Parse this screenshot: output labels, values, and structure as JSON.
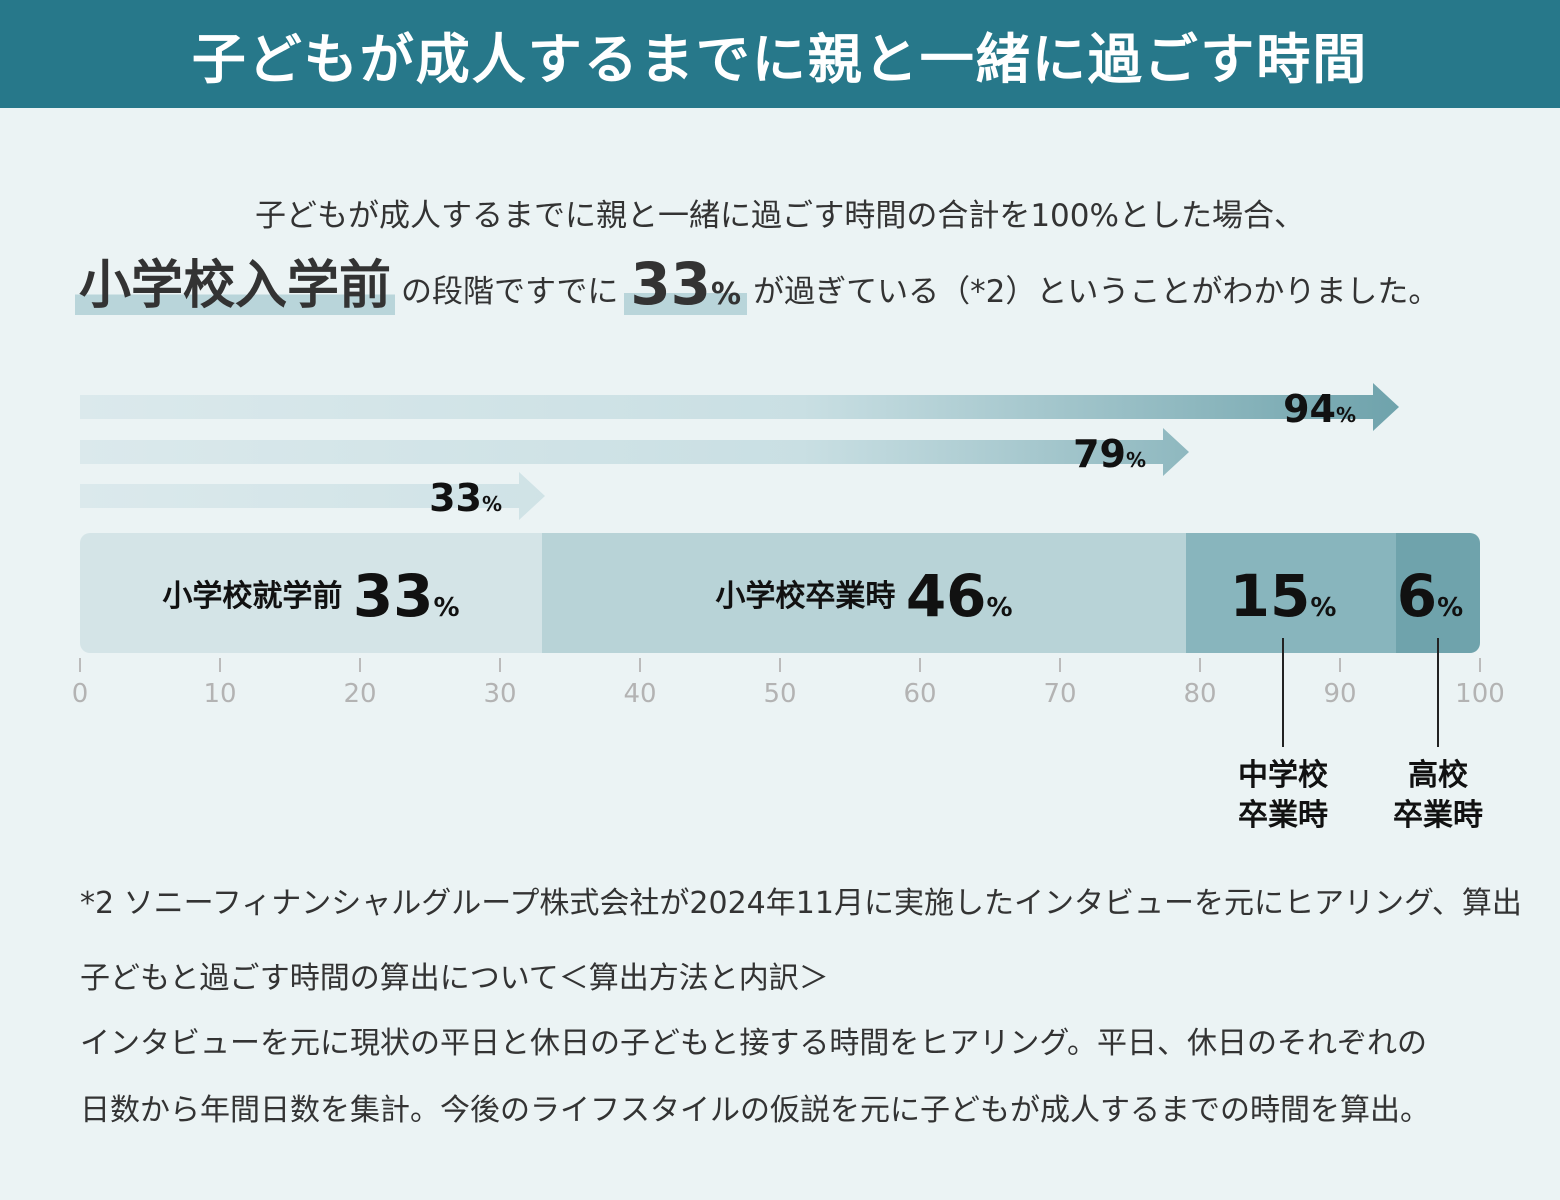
{
  "header": {
    "title": "子どもが成人するまでに親と一緒に過ごす時間"
  },
  "lead": {
    "line1": "子どもが成人するまでに親と一緒に過ごす時間の合計を100%とした場合、",
    "highlight_stage": "小学校入学前",
    "middle": "の段階ですでに",
    "highlight_value": "33",
    "highlight_unit": "%",
    "end": "が過ぎている（*2）ということがわかりました。"
  },
  "colors": {
    "header_bg": "#27788a",
    "background": "#ebf3f4",
    "seg1": "#d4e4e7",
    "seg2": "#b8d3d7",
    "seg3": "#88b5bd",
    "seg4": "#6fa3ac",
    "arrow_light": "#dbe9ec",
    "arrow_mid": "#c9dfe3",
    "arrow_dark": "#6fa3ac"
  },
  "chart_data": {
    "type": "bar",
    "title": "子どもが成人するまでに親と一緒に過ごす時間",
    "orientation": "horizontal-stacked",
    "unit": "%",
    "xlim": [
      0,
      100
    ],
    "ticks": [
      0,
      10,
      20,
      30,
      40,
      50,
      60,
      70,
      80,
      90,
      100
    ],
    "segments": [
      {
        "name": "小学校就学前",
        "value": 33,
        "label": "小学校就学前"
      },
      {
        "name": "小学校卒業時",
        "value": 46,
        "label": "小学校卒業時"
      },
      {
        "name": "中学校卒業時",
        "value": 15,
        "label": "",
        "callout": [
          "中学校",
          "卒業時"
        ]
      },
      {
        "name": "高校卒業時",
        "value": 6,
        "label": "",
        "callout": [
          "高校",
          "卒業時"
        ]
      }
    ],
    "cumulative": [
      {
        "value": 33,
        "label": "33"
      },
      {
        "value": 79,
        "label": "79"
      },
      {
        "value": 94,
        "label": "94"
      }
    ]
  },
  "footnotes": [
    "*2 ソニーフィナンシャルグループ株式会社が2024年11月に実施したインタビューを元にヒアリング、算出",
    "子どもと過ごす時間の算出について＜算出方法と内訳＞",
    "インタビューを元に現状の平日と休日の子どもと接する時間をヒアリング。平日、休日のそれぞれの",
    "日数から年間日数を集計。今後のライフスタイルの仮説を元に子どもが成人するまでの時間を算出。"
  ]
}
